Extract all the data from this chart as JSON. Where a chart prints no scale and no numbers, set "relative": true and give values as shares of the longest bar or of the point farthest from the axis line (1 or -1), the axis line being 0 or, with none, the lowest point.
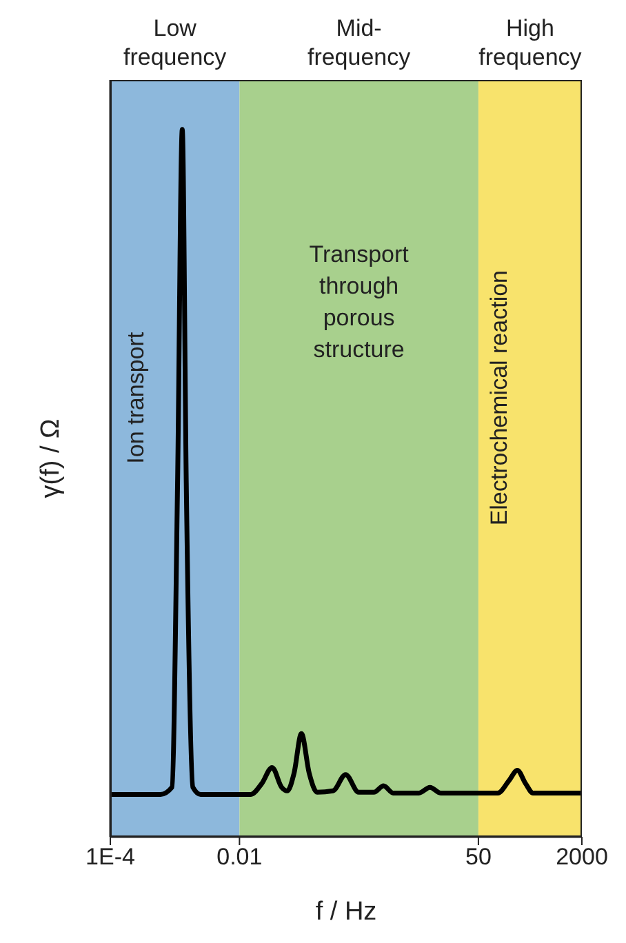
{
  "chart_data": {
    "type": "line",
    "xlabel": "f / Hz",
    "ylabel": "γ(f) / Ω",
    "log": "x",
    "relative": true,
    "xlim": [
      0.0001,
      2000
    ],
    "xticks": [
      {
        "value": 0.0001,
        "label": "1E-4"
      },
      0.01,
      50,
      2000
    ],
    "x": [
      0.0001,
      0.0006,
      0.0009,
      0.0011,
      0.0013,
      0.0015,
      0.0019,
      0.0025,
      0.015,
      0.022,
      0.032,
      0.045,
      0.055,
      0.07,
      0.091,
      0.12,
      0.16,
      0.28,
      0.44,
      0.7,
      1.2,
      1.7,
      2.4,
      6,
      8.9,
      13,
      100,
      150,
      200,
      270,
      350,
      2000
    ],
    "series": [
      {
        "color": "#000000",
        "values": [
          0.06,
          0.06,
          0.07,
          0.5,
          1,
          0.5,
          0.07,
          0.06,
          0.06,
          0.075,
          0.098,
          0.07,
          0.065,
          0.09,
          0.146,
          0.09,
          0.063,
          0.065,
          0.088,
          0.063,
          0.063,
          0.072,
          0.062,
          0.062,
          0.07,
          0.062,
          0.062,
          0.08,
          0.094,
          0.075,
          0.062,
          0.062
        ]
      }
    ],
    "bands": [
      {
        "axis": "x",
        "from": 0.0001,
        "to": 0.01,
        "label": "Low frequency",
        "color": "#8db8dc"
      },
      {
        "axis": "x",
        "from": 0.01,
        "to": 50,
        "label": "Mid-frequency",
        "color": "#a8d08d"
      },
      {
        "axis": "x",
        "from": 50,
        "to": 2000,
        "label": "High frequency",
        "color": "#f8e36c"
      }
    ],
    "annotations": [
      "Ion transport",
      "Transport through porous structure",
      "Electrochemical reaction"
    ],
    "marker": "none"
  }
}
